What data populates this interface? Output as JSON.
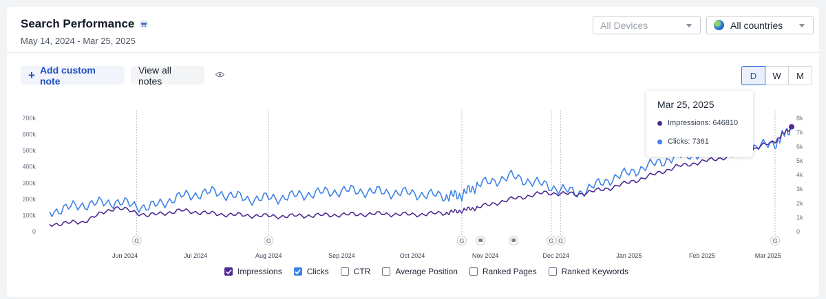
{
  "header": {
    "title": "Search Performance",
    "date_range": "May 14, 2024 - Mar 25, 2025"
  },
  "filters": {
    "devices": "All Devices",
    "countries": "All countries"
  },
  "notes": {
    "add_label": "Add custom note",
    "view_label": "View all notes"
  },
  "granularity": {
    "options": [
      "D",
      "W",
      "M"
    ],
    "selected": "D"
  },
  "tooltip": {
    "date": "Mar 25, 2025",
    "impressions": "Impressions: 646810",
    "clicks": "Clicks: 7361"
  },
  "legend": [
    {
      "label": "Impressions",
      "checked": true,
      "color": "#4c2a92"
    },
    {
      "label": "Clicks",
      "checked": true,
      "color": "#3f82e6"
    },
    {
      "label": "CTR",
      "checked": false
    },
    {
      "label": "Average Position",
      "checked": false
    },
    {
      "label": "Ranked Pages",
      "checked": false
    },
    {
      "label": "Ranked Keywords",
      "checked": false
    }
  ],
  "chart_data": {
    "type": "line",
    "x_label_months": [
      "Jun 2024",
      "Jul 2024",
      "Aug 2024",
      "Sep 2024",
      "Oct 2024",
      "Nov 2024",
      "Dec 2024",
      "Jan 2025",
      "Feb 2025",
      "Mar 2025"
    ],
    "left_axis": {
      "ticks": [
        "0",
        "100k",
        "200k",
        "300k",
        "400k",
        "500k",
        "600k",
        "700k"
      ],
      "range": [
        0,
        700000
      ]
    },
    "right_axis": {
      "ticks": [
        "0",
        "1k",
        "2k",
        "3k",
        "4k",
        "5k",
        "6k",
        "7k",
        "8k"
      ],
      "range": [
        0,
        8000
      ]
    },
    "x": [
      "2024-05-14",
      "2024-05-28",
      "2024-06-11",
      "2024-06-25",
      "2024-07-09",
      "2024-07-23",
      "2024-08-06",
      "2024-08-20",
      "2024-09-03",
      "2024-09-17",
      "2024-10-01",
      "2024-10-15",
      "2024-10-29",
      "2024-11-05",
      "2024-11-12",
      "2024-11-26",
      "2024-12-10",
      "2024-12-24",
      "2025-01-07",
      "2025-01-21",
      "2025-02-04",
      "2025-02-18",
      "2025-03-04",
      "2025-03-18",
      "2025-03-25"
    ],
    "series": [
      {
        "name": "Impressions",
        "axis": "left",
        "color": "#4c2a92",
        "values": [
          45000,
          60000,
          150000,
          100000,
          130000,
          110000,
          100000,
          95000,
          100000,
          105000,
          110000,
          105000,
          115000,
          130000,
          150000,
          200000,
          240000,
          230000,
          270000,
          330000,
          400000,
          440000,
          480000,
          560000,
          646810
        ]
      },
      {
        "name": "Clicks",
        "axis": "right",
        "color": "#3f82e6",
        "values": [
          1400,
          1900,
          2100,
          1700,
          2500,
          2800,
          2300,
          2400,
          2700,
          2900,
          2800,
          2700,
          2500,
          2600,
          3300,
          3900,
          3300,
          2700,
          3700,
          4500,
          5300,
          5600,
          5800,
          6200,
          7361
        ]
      }
    ],
    "note_markers": [
      "google",
      "google",
      "google",
      "note",
      "note",
      "google",
      "google",
      "google"
    ],
    "grid": false,
    "legend_position": "bottom"
  }
}
